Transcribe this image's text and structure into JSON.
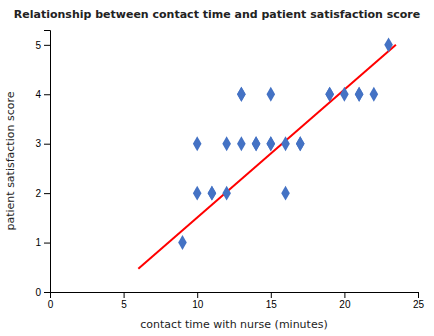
{
  "chart_data": {
    "type": "scatter",
    "title": "Relationship between contact time and patient satisfaction score",
    "xlabel": "contact time with nurse (minutes)",
    "ylabel": "patient satisfaction score",
    "xlim": [
      0,
      25
    ],
    "ylim": [
      0,
      5.3
    ],
    "xticks": [
      0,
      5,
      10,
      15,
      20,
      25
    ],
    "yticks": [
      0,
      1,
      2,
      3,
      4,
      5
    ],
    "grid": false,
    "series": [
      {
        "type": "scatter",
        "color": "#4472C4",
        "marker": "diamond",
        "x": [
          9,
          10,
          10,
          11,
          11,
          12,
          12,
          13,
          13,
          13,
          14,
          14,
          15,
          15,
          15,
          16,
          16,
          17,
          17,
          19,
          19,
          20,
          21,
          21,
          22,
          23
        ],
        "values": [
          1,
          2,
          3,
          2,
          2,
          3,
          2,
          4,
          4,
          3,
          3,
          3,
          4,
          3,
          3,
          3,
          2,
          3,
          3,
          4,
          4,
          4,
          4,
          4,
          4,
          5
        ]
      },
      {
        "type": "line",
        "color": "#FF0000",
        "line_style": "solid",
        "x": [
          6.0,
          23.5
        ],
        "values": [
          0.47,
          5.0
        ]
      }
    ]
  }
}
